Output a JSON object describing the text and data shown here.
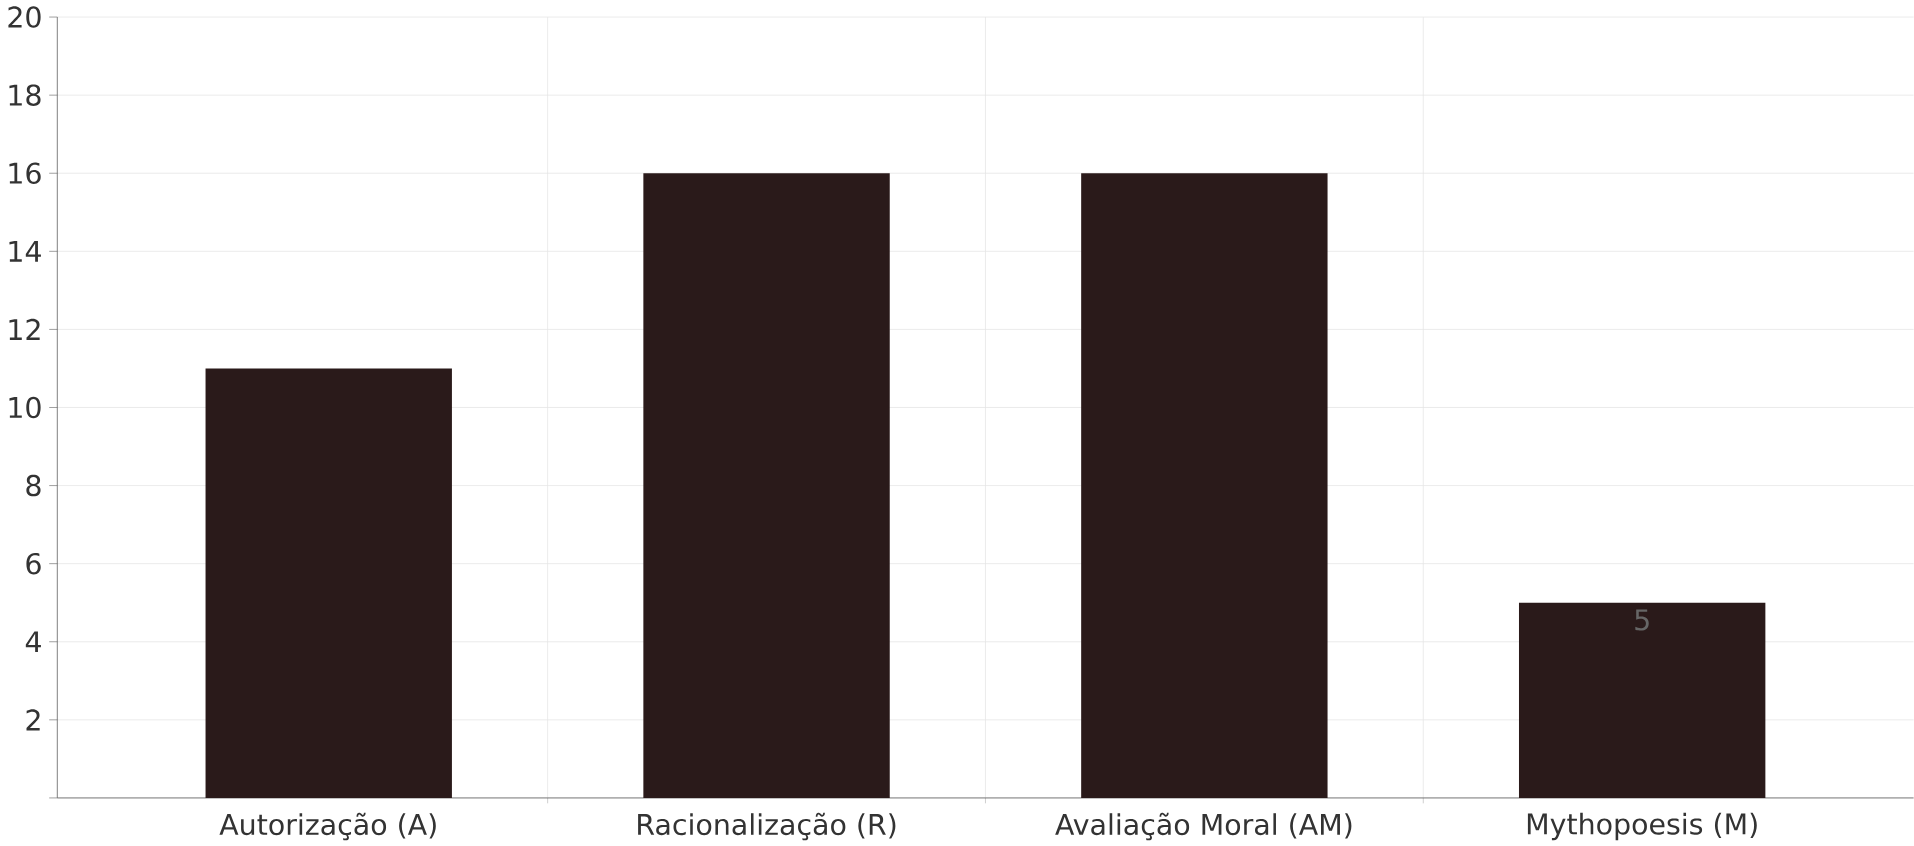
{
  "chart_data": {
    "type": "bar",
    "categories": [
      "Autorização (A)",
      "Racionalização (R)",
      "Avaliação Moral (AM)",
      "Mythopoesis (M)"
    ],
    "values": [
      11,
      16,
      16,
      5
    ],
    "color": "#2a1a1a",
    "value_labels": [
      null,
      null,
      null,
      "5"
    ],
    "ylim": [
      0,
      20
    ],
    "yticks": [
      {
        "value": 0,
        "label": null
      },
      2,
      4,
      6,
      8,
      10,
      12,
      14,
      16,
      18,
      20
    ],
    "grid": true
  }
}
